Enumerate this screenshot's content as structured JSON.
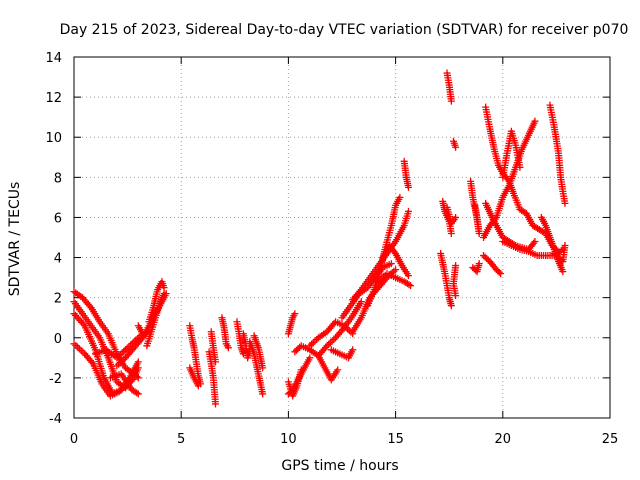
{
  "chart_data": {
    "type": "scatter",
    "title": "Day 215 of 2023, Sidereal Day-to-day VTEC variation (SDTVAR) for receiver p070",
    "xlabel": "GPS time / hours",
    "ylabel": "SDTVAR / TECUs",
    "xlim": [
      0,
      25
    ],
    "ylim": [
      -4,
      14
    ],
    "xticks": [
      0,
      5,
      10,
      15,
      20,
      25
    ],
    "yticks": [
      -4,
      -2,
      0,
      2,
      4,
      6,
      8,
      10,
      12,
      14
    ],
    "grid": true,
    "marker": "+",
    "series": [
      {
        "name": "SDTVAR",
        "color": "#ff0000",
        "tracks": [
          [
            [
              0.0,
              2.3
            ],
            [
              0.4,
              2.0
            ],
            [
              0.8,
              1.5
            ],
            [
              1.2,
              0.8
            ],
            [
              1.6,
              0.2
            ],
            [
              2.0,
              -0.8
            ],
            [
              2.4,
              -1.5
            ],
            [
              2.8,
              -1.8
            ],
            [
              3.0,
              -2.0
            ]
          ],
          [
            [
              0.0,
              1.8
            ],
            [
              0.4,
              1.2
            ],
            [
              0.8,
              0.6
            ],
            [
              1.2,
              0.0
            ],
            [
              1.6,
              -1.0
            ],
            [
              2.0,
              -2.2
            ],
            [
              2.4,
              -2.5
            ],
            [
              2.8,
              -2.0
            ],
            [
              3.0,
              -1.5
            ]
          ],
          [
            [
              0.0,
              1.2
            ],
            [
              0.5,
              0.6
            ],
            [
              1.0,
              -0.6
            ],
            [
              1.4,
              -2.0
            ],
            [
              1.8,
              -2.8
            ],
            [
              2.2,
              -2.6
            ],
            [
              2.6,
              -2.0
            ],
            [
              3.0,
              -1.2
            ]
          ],
          [
            [
              0.0,
              -0.3
            ],
            [
              0.5,
              -0.8
            ],
            [
              0.9,
              -1.3
            ],
            [
              1.3,
              -2.3
            ],
            [
              1.7,
              -2.9
            ],
            [
              2.1,
              -2.7
            ],
            [
              2.5,
              -2.3
            ]
          ],
          [
            [
              1.0,
              -0.8
            ],
            [
              1.5,
              -0.6
            ],
            [
              2.0,
              -1.0
            ],
            [
              2.4,
              -0.6
            ],
            [
              2.8,
              -0.2
            ],
            [
              3.2,
              0.2
            ],
            [
              3.0,
              0.6
            ]
          ],
          [
            [
              2.0,
              -1.4
            ],
            [
              2.4,
              -1.0
            ],
            [
              2.8,
              -0.5
            ],
            [
              3.2,
              0.0
            ],
            [
              3.5,
              0.4
            ]
          ],
          [
            [
              1.7,
              -2.0
            ],
            [
              2.2,
              -1.8
            ],
            [
              2.7,
              -2.6
            ],
            [
              3.0,
              -2.8
            ]
          ],
          [
            [
              3.4,
              -0.4
            ],
            [
              3.6,
              0.3
            ],
            [
              3.8,
              1.0
            ],
            [
              4.0,
              1.7
            ],
            [
              4.2,
              2.2
            ]
          ],
          [
            [
              3.5,
              0.8
            ],
            [
              3.7,
              1.5
            ],
            [
              3.9,
              2.4
            ],
            [
              4.1,
              2.8
            ],
            [
              4.2,
              2.5
            ]
          ],
          [
            [
              3.3,
              0.2
            ],
            [
              3.6,
              0.8
            ],
            [
              4.0,
              1.6
            ],
            [
              4.3,
              2.2
            ]
          ],
          [
            [
              5.4,
              0.6
            ],
            [
              5.5,
              0.0
            ],
            [
              5.6,
              -0.5
            ],
            [
              5.7,
              -1.2
            ],
            [
              5.8,
              -1.9
            ],
            [
              5.9,
              -2.3
            ]
          ],
          [
            [
              5.4,
              -1.5
            ],
            [
              5.6,
              -2.0
            ],
            [
              5.8,
              -2.4
            ]
          ],
          [
            [
              6.3,
              -0.7
            ],
            [
              6.4,
              -1.3
            ],
            [
              6.5,
              -2.0
            ],
            [
              6.6,
              -3.3
            ]
          ],
          [
            [
              6.4,
              0.3
            ],
            [
              6.5,
              -0.5
            ],
            [
              6.6,
              -1.2
            ]
          ],
          [
            [
              6.9,
              1.0
            ],
            [
              7.0,
              0.5
            ],
            [
              7.1,
              -0.3
            ],
            [
              7.2,
              -0.5
            ]
          ],
          [
            [
              7.6,
              0.8
            ],
            [
              7.7,
              0.2
            ],
            [
              7.8,
              -0.5
            ],
            [
              7.9,
              -0.8
            ]
          ],
          [
            [
              7.9,
              0.2
            ],
            [
              8.0,
              -0.3
            ],
            [
              8.1,
              -1.0
            ],
            [
              8.2,
              -0.6
            ]
          ],
          [
            [
              8.2,
              -0.2
            ],
            [
              8.4,
              -0.8
            ],
            [
              8.6,
              -1.8
            ],
            [
              8.8,
              -2.8
            ]
          ],
          [
            [
              8.4,
              0.1
            ],
            [
              8.6,
              -0.5
            ],
            [
              8.8,
              -1.5
            ]
          ],
          [
            [
              10.0,
              -2.8
            ],
            [
              10.2,
              -2.6
            ],
            [
              10.4,
              -2.2
            ],
            [
              10.6,
              -1.8
            ],
            [
              10.8,
              -1.4
            ],
            [
              11.0,
              -1.0
            ]
          ],
          [
            [
              10.0,
              -2.2
            ],
            [
              10.2,
              -2.9
            ],
            [
              10.4,
              -2.4
            ],
            [
              10.6,
              -1.6
            ]
          ],
          [
            [
              10.0,
              0.2
            ],
            [
              10.1,
              0.6
            ],
            [
              10.2,
              1.0
            ],
            [
              10.3,
              1.2
            ]
          ],
          [
            [
              10.3,
              -0.7
            ],
            [
              10.6,
              -0.4
            ],
            [
              11.0,
              -0.6
            ],
            [
              11.4,
              -0.9
            ],
            [
              11.7,
              -1.5
            ],
            [
              12.0,
              -2.1
            ],
            [
              12.3,
              -1.6
            ]
          ],
          [
            [
              11.0,
              -0.4
            ],
            [
              11.4,
              0.0
            ],
            [
              11.8,
              0.3
            ],
            [
              12.2,
              0.8
            ],
            [
              12.6,
              0.6
            ],
            [
              13.0,
              0.2
            ]
          ],
          [
            [
              11.4,
              -0.9
            ],
            [
              11.8,
              -0.4
            ],
            [
              12.2,
              0.0
            ],
            [
              12.6,
              0.5
            ],
            [
              13.0,
              1.1
            ],
            [
              13.4,
              1.8
            ]
          ],
          [
            [
              12.0,
              -0.6
            ],
            [
              12.4,
              -0.8
            ],
            [
              12.8,
              -1.0
            ],
            [
              13.0,
              -0.6
            ]
          ],
          [
            [
              12.5,
              1.0
            ],
            [
              12.9,
              1.6
            ],
            [
              13.3,
              2.2
            ],
            [
              13.7,
              2.5
            ],
            [
              14.0,
              3.0
            ],
            [
              14.4,
              3.5
            ],
            [
              14.8,
              3.7
            ]
          ],
          [
            [
              13.0,
              1.9
            ],
            [
              13.4,
              2.4
            ],
            [
              13.8,
              3.0
            ],
            [
              14.2,
              3.6
            ],
            [
              14.6,
              4.2
            ],
            [
              15.0,
              4.8
            ],
            [
              15.4,
              5.6
            ],
            [
              15.6,
              6.3
            ]
          ],
          [
            [
              13.0,
              0.3
            ],
            [
              13.4,
              1.0
            ],
            [
              13.8,
              2.0
            ],
            [
              14.2,
              2.5
            ],
            [
              14.6,
              3.0
            ],
            [
              15.0,
              3.4
            ]
          ],
          [
            [
              13.7,
              1.6
            ],
            [
              14.0,
              2.4
            ],
            [
              14.3,
              3.4
            ],
            [
              14.5,
              4.4
            ],
            [
              14.8,
              5.6
            ],
            [
              15.0,
              6.6
            ],
            [
              15.2,
              7.0
            ]
          ],
          [
            [
              14.2,
              2.8
            ],
            [
              14.6,
              3.2
            ],
            [
              15.0,
              3.0
            ],
            [
              15.4,
              2.8
            ],
            [
              15.7,
              2.6
            ]
          ],
          [
            [
              14.4,
              4.0
            ],
            [
              14.7,
              4.6
            ],
            [
              15.0,
              4.2
            ],
            [
              15.3,
              3.6
            ],
            [
              15.6,
              3.1
            ]
          ],
          [
            [
              15.4,
              8.8
            ],
            [
              15.5,
              8.0
            ],
            [
              15.6,
              7.5
            ]
          ],
          [
            [
              17.1,
              4.2
            ],
            [
              17.3,
              3.2
            ],
            [
              17.5,
              2.0
            ],
            [
              17.6,
              1.6
            ]
          ],
          [
            [
              17.2,
              6.8
            ],
            [
              17.3,
              6.3
            ],
            [
              17.5,
              5.8
            ],
            [
              17.6,
              5.2
            ]
          ],
          [
            [
              17.4,
              13.2
            ],
            [
              17.5,
              12.6
            ],
            [
              17.6,
              11.8
            ]
          ],
          [
            [
              17.4,
              6.5
            ],
            [
              17.6,
              5.7
            ],
            [
              17.8,
              6.0
            ]
          ],
          [
            [
              17.7,
              9.8
            ],
            [
              17.8,
              9.5
            ]
          ],
          [
            [
              17.8,
              3.6
            ],
            [
              17.7,
              2.7
            ],
            [
              17.8,
              2.1
            ]
          ],
          [
            [
              18.5,
              7.8
            ],
            [
              18.6,
              7.0
            ],
            [
              18.8,
              6.0
            ],
            [
              18.9,
              5.2
            ],
            [
              18.7,
              6.6
            ]
          ],
          [
            [
              18.6,
              3.5
            ],
            [
              18.8,
              3.3
            ],
            [
              18.9,
              3.7
            ]
          ],
          [
            [
              19.1,
              4.1
            ],
            [
              19.4,
              3.8
            ],
            [
              19.7,
              3.4
            ],
            [
              19.9,
              3.2
            ]
          ],
          [
            [
              19.2,
              6.7
            ],
            [
              19.5,
              6.0
            ],
            [
              19.8,
              5.4
            ],
            [
              20.0,
              5.0
            ],
            [
              20.3,
              4.8
            ],
            [
              20.6,
              4.6
            ],
            [
              20.9,
              4.5
            ],
            [
              21.2,
              4.4
            ],
            [
              21.5,
              4.8
            ]
          ],
          [
            [
              19.1,
              5.0
            ],
            [
              19.4,
              5.6
            ],
            [
              19.7,
              6.0
            ],
            [
              20.0,
              7.0
            ],
            [
              20.3,
              7.6
            ],
            [
              20.6,
              8.5
            ],
            [
              20.9,
              9.4
            ],
            [
              21.2,
              10.1
            ],
            [
              21.5,
              10.8
            ]
          ],
          [
            [
              19.2,
              11.5
            ],
            [
              19.4,
              10.4
            ],
            [
              19.6,
              9.4
            ],
            [
              19.8,
              8.6
            ],
            [
              20.0,
              8.2
            ],
            [
              20.3,
              7.8
            ],
            [
              20.5,
              7.2
            ],
            [
              20.8,
              6.4
            ],
            [
              21.1,
              6.2
            ],
            [
              21.4,
              5.6
            ],
            [
              21.7,
              5.4
            ],
            [
              22.0,
              5.2
            ],
            [
              22.3,
              4.6
            ],
            [
              22.5,
              4.4
            ]
          ],
          [
            [
              20.0,
              8.0
            ],
            [
              20.2,
              9.2
            ],
            [
              20.4,
              10.3
            ],
            [
              20.6,
              9.6
            ],
            [
              20.8,
              8.5
            ]
          ],
          [
            [
              20.0,
              4.8
            ],
            [
              20.4,
              4.6
            ],
            [
              20.8,
              4.4
            ],
            [
              21.2,
              4.3
            ],
            [
              21.6,
              4.1
            ],
            [
              22.0,
              4.1
            ],
            [
              22.4,
              4.1
            ],
            [
              22.8,
              4.4
            ]
          ],
          [
            [
              21.8,
              6.0
            ],
            [
              22.0,
              5.6
            ],
            [
              22.2,
              5.0
            ],
            [
              22.4,
              4.4
            ],
            [
              22.6,
              3.8
            ],
            [
              22.8,
              3.3
            ]
          ],
          [
            [
              22.2,
              11.6
            ],
            [
              22.4,
              10.5
            ],
            [
              22.6,
              9.2
            ],
            [
              22.7,
              8.0
            ],
            [
              22.8,
              7.3
            ],
            [
              22.9,
              6.7
            ]
          ],
          [
            [
              22.4,
              4.2
            ],
            [
              22.6,
              4.0
            ],
            [
              22.8,
              3.8
            ],
            [
              22.9,
              4.6
            ]
          ]
        ]
      }
    ]
  }
}
